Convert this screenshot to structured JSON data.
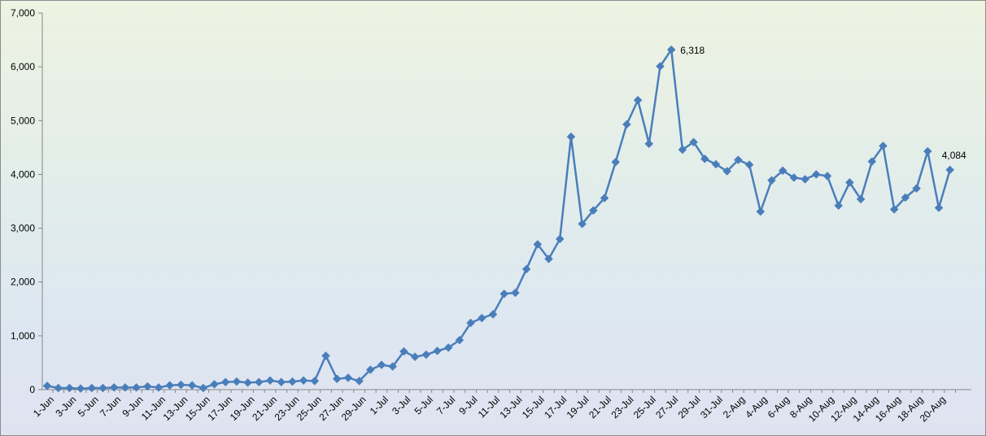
{
  "chart_data": {
    "type": "line",
    "title": "",
    "xlabel": "",
    "ylabel": "",
    "ylim": [
      0,
      7000
    ],
    "yticks": [
      0,
      1000,
      2000,
      3000,
      4000,
      5000,
      6000,
      7000
    ],
    "ytick_labels": [
      "0",
      "1,000",
      "2,000",
      "3,000",
      "4,000",
      "5,000",
      "6,000",
      "7,000"
    ],
    "grid": false,
    "legend": "none",
    "line_color": "#4a7ebb",
    "categories": [
      "1-Jun",
      "2-Jun",
      "3-Jun",
      "4-Jun",
      "5-Jun",
      "6-Jun",
      "7-Jun",
      "8-Jun",
      "9-Jun",
      "10-Jun",
      "11-Jun",
      "12-Jun",
      "13-Jun",
      "14-Jun",
      "15-Jun",
      "16-Jun",
      "17-Jun",
      "18-Jun",
      "19-Jun",
      "20-Jun",
      "21-Jun",
      "22-Jun",
      "23-Jun",
      "24-Jun",
      "25-Jun",
      "26-Jun",
      "27-Jun",
      "28-Jun",
      "29-Jun",
      "30-Jun",
      "1-Jul",
      "2-Jul",
      "3-Jul",
      "4-Jul",
      "5-Jul",
      "6-Jul",
      "7-Jul",
      "8-Jul",
      "9-Jul",
      "10-Jul",
      "11-Jul",
      "12-Jul",
      "13-Jul",
      "14-Jul",
      "15-Jul",
      "16-Jul",
      "17-Jul",
      "18-Jul",
      "19-Jul",
      "20-Jul",
      "21-Jul",
      "22-Jul",
      "23-Jul",
      "24-Jul",
      "25-Jul",
      "26-Jul",
      "27-Jul",
      "28-Jul",
      "29-Jul",
      "30-Jul",
      "31-Jul",
      "1-Aug",
      "2-Aug",
      "3-Aug",
      "4-Aug",
      "5-Aug",
      "6-Aug",
      "7-Aug",
      "8-Aug",
      "9-Aug",
      "10-Aug",
      "11-Aug",
      "12-Aug",
      "13-Aug",
      "14-Aug",
      "15-Aug",
      "16-Aug",
      "17-Aug",
      "18-Aug",
      "19-Aug",
      "20-Aug",
      "21-Aug"
    ],
    "xtick_labels": [
      "1-Jun",
      "3-Jun",
      "5-Jun",
      "7-Jun",
      "9-Jun",
      "11-Jun",
      "13-Jun",
      "15-Jun",
      "17-Jun",
      "19-Jun",
      "21-Jun",
      "23-Jun",
      "25-Jun",
      "27-Jun",
      "29-Jun",
      "1-Jul",
      "3-Jul",
      "5-Jul",
      "7-Jul",
      "9-Jul",
      "11-Jul",
      "13-Jul",
      "15-Jul",
      "17-Jul",
      "19-Jul",
      "21-Jul",
      "23-Jul",
      "25-Jul",
      "27-Jul",
      "29-Jul",
      "31-Jul",
      "2-Aug",
      "4-Aug",
      "6-Aug",
      "8-Aug",
      "10-Aug",
      "12-Aug",
      "14-Aug",
      "16-Aug",
      "18-Aug",
      "20-Aug"
    ],
    "values": [
      70,
      30,
      30,
      20,
      30,
      30,
      40,
      40,
      40,
      60,
      40,
      80,
      90,
      80,
      30,
      100,
      140,
      150,
      130,
      140,
      170,
      140,
      150,
      170,
      160,
      630,
      200,
      220,
      160,
      370,
      460,
      430,
      710,
      610,
      650,
      720,
      780,
      920,
      1240,
      1330,
      1400,
      1780,
      1800,
      2240,
      2700,
      2430,
      2800,
      4700,
      3080,
      3330,
      3560,
      4230,
      4930,
      5380,
      4570,
      6010,
      6318,
      4460,
      4600,
      4290,
      4190,
      4060,
      4270,
      4180,
      3310,
      3890,
      4070,
      3940,
      3910,
      4000,
      3970,
      3420,
      3850,
      3540,
      4240,
      4530,
      3350,
      3570,
      3740,
      4430,
      3380,
      4084
    ],
    "data_labels": [
      {
        "category": "27-Jul",
        "text": "6,318"
      },
      {
        "category": "21-Aug",
        "text": "4,084"
      }
    ]
  }
}
